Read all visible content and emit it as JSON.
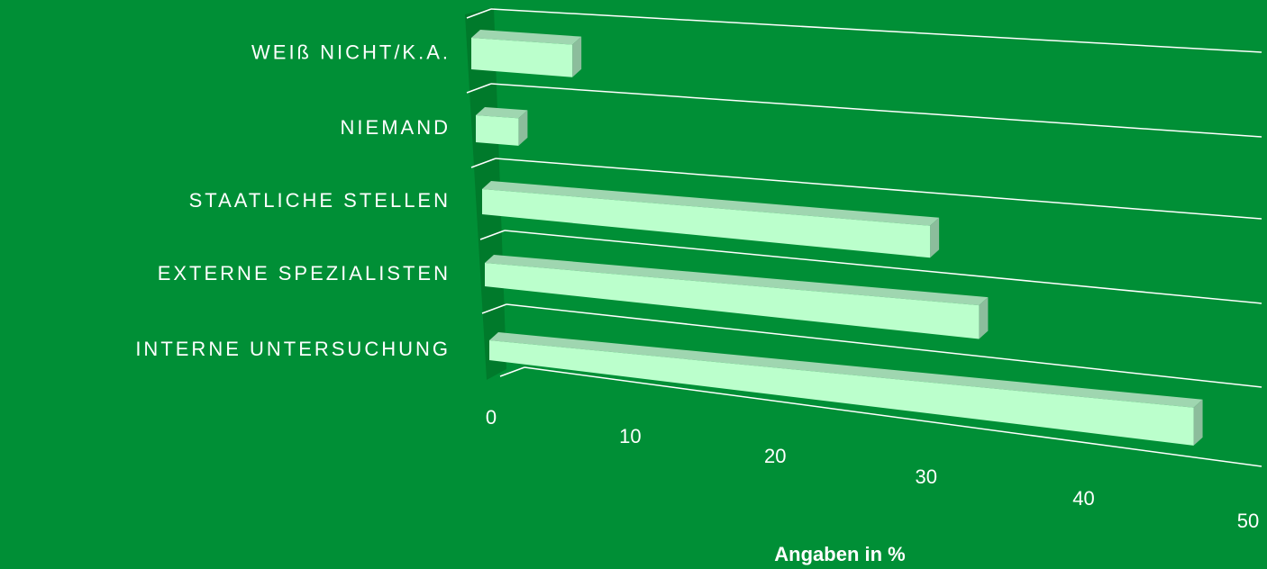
{
  "chart_data": {
    "type": "bar3d",
    "categories": [
      "WEIß NICHT/K.A.",
      "NIEMAND",
      "STAATLICHE STELLEN",
      "EXTERNE SPEZIALISTEN",
      "INTERNE UNTERSUCHUNG"
    ],
    "values": [
      7,
      3,
      30,
      33,
      46
    ],
    "x_label": "Angaben in %",
    "xlim": [
      0,
      50
    ],
    "xticks": [
      0,
      10,
      20,
      30,
      40,
      50
    ],
    "color": "#bbffcc",
    "grid": true
  }
}
